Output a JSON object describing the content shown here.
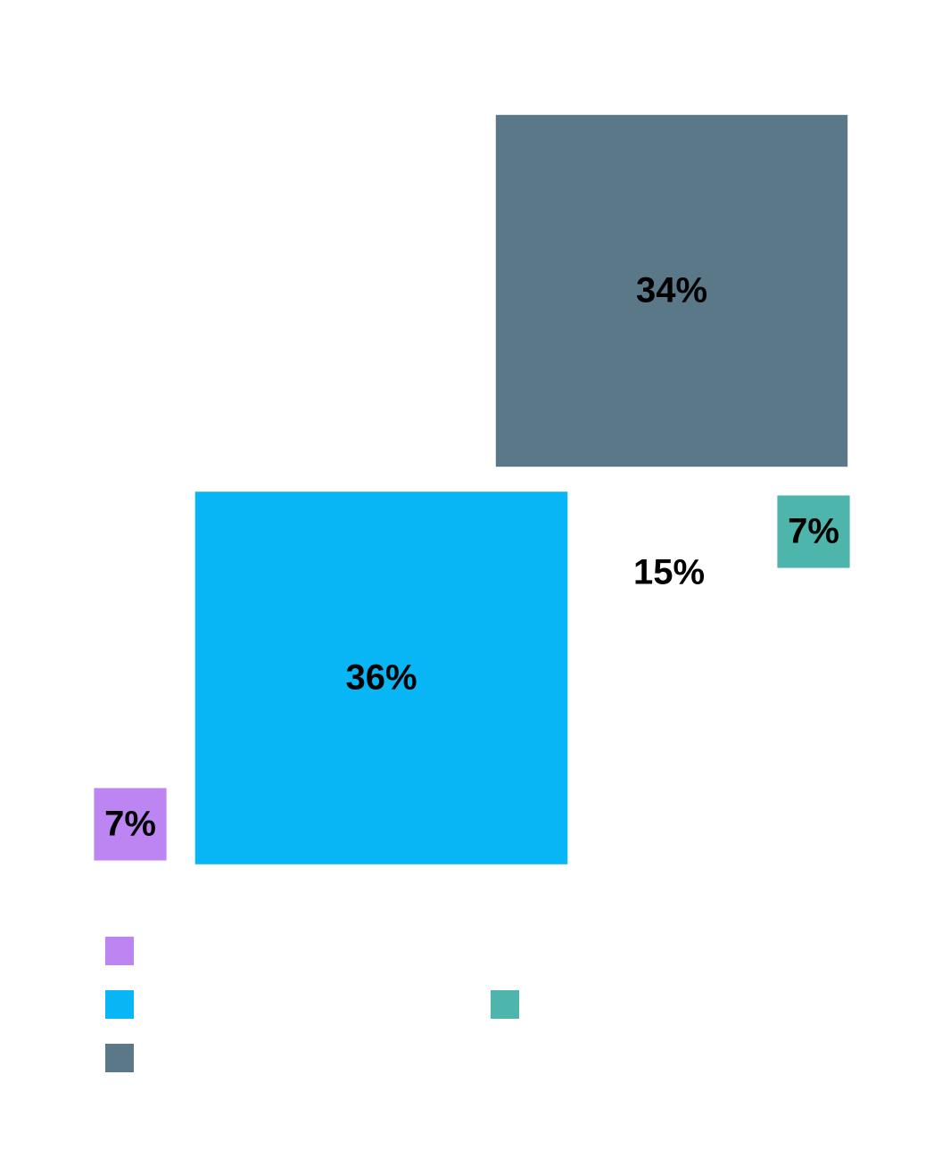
{
  "chart_data": {
    "type": "square",
    "values": [
      7,
      36,
      34,
      15,
      7
    ],
    "value_labels": [
      "7%",
      "36%",
      "34%",
      "15%",
      "7%"
    ],
    "colors": [
      "#bc85f2",
      "#08b5f5",
      "#5b7889",
      "#ffffff",
      "#4db5ab"
    ],
    "legend": true
  }
}
